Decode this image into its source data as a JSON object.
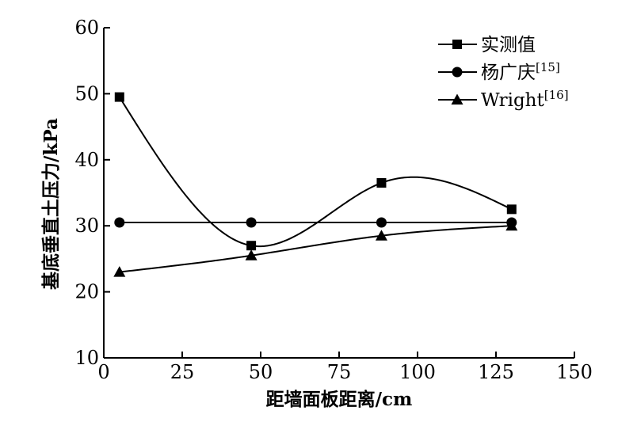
{
  "chart_data": {
    "type": "line",
    "xlabel": "距墙面板距离/cm",
    "ylabel": "基底垂直土压力/kPa",
    "xlim": [
      0,
      150
    ],
    "ylim": [
      10,
      60
    ],
    "x_ticks": [
      "0",
      "25",
      "50",
      "75",
      "100",
      "125",
      "150"
    ],
    "y_ticks": [
      "10",
      "20",
      "30",
      "40",
      "50",
      "60"
    ],
    "grid": false,
    "legend_position": "top-right",
    "series": [
      {
        "name": "实测值",
        "marker": "square",
        "curve": "smooth",
        "x": [
          5,
          47,
          88.5,
          130
        ],
        "values": [
          49.5,
          27,
          36.5,
          32.5
        ]
      },
      {
        "name": "杨广庆",
        "name_ref": "[15]",
        "marker": "circle",
        "curve": "linear",
        "x": [
          5,
          47,
          88.5,
          130
        ],
        "values": [
          30.5,
          30.5,
          30.5,
          30.5
        ]
      },
      {
        "name": "Wright",
        "name_ref": "[16]",
        "marker": "triangle",
        "curve": "smooth",
        "x": [
          5,
          47,
          88.5,
          130
        ],
        "values": [
          23,
          25.5,
          28.5,
          30
        ]
      }
    ]
  }
}
